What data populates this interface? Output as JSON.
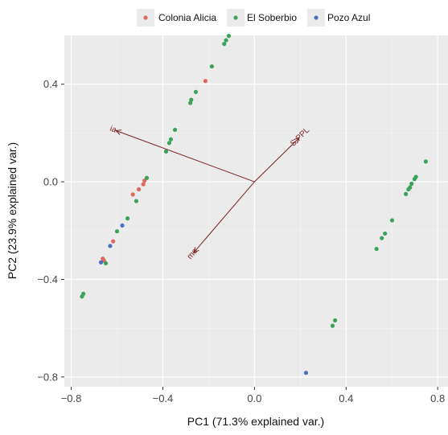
{
  "chart_data": {
    "type": "scatter",
    "xlabel": "PC1 (71.3% explained var.)",
    "ylabel": "PC2 (23.9% explained var.)",
    "xlim": [
      -0.83,
      0.845
    ],
    "ylim": [
      -0.84,
      0.6
    ],
    "x_ticks": [
      -0.8,
      -0.4,
      0.0,
      0.4,
      0.8
    ],
    "x_tick_labels": [
      "−0.8",
      "−0.4",
      "0.0",
      "0.4",
      "0.8"
    ],
    "y_ticks": [
      -0.8,
      -0.4,
      0.0,
      0.4
    ],
    "y_tick_labels": [
      "−0.8",
      "−0.4",
      "0.0",
      "0.4"
    ],
    "grid": true,
    "legend_position": "top",
    "series": [
      {
        "name": "Colonia Alicia",
        "color": "#e0685a",
        "points": [
          [
            -0.662,
            -0.315
          ],
          [
            -0.657,
            -0.323
          ],
          [
            -0.617,
            -0.244
          ],
          [
            -0.531,
            -0.052
          ],
          [
            -0.505,
            -0.031
          ],
          [
            -0.485,
            -0.01
          ],
          [
            -0.48,
            0.005
          ],
          [
            -0.214,
            0.413
          ]
        ]
      },
      {
        "name": "El Soberbio",
        "color": "#3aa357",
        "points": [
          [
            -0.753,
            -0.47
          ],
          [
            -0.747,
            -0.459
          ],
          [
            -0.649,
            -0.334
          ],
          [
            -0.6,
            -0.203
          ],
          [
            -0.554,
            -0.15
          ],
          [
            -0.516,
            -0.079
          ],
          [
            -0.47,
            0.016
          ],
          [
            -0.386,
            0.124
          ],
          [
            -0.372,
            0.159
          ],
          [
            -0.365,
            0.174
          ],
          [
            -0.347,
            0.213
          ],
          [
            -0.28,
            0.323
          ],
          [
            -0.276,
            0.336
          ],
          [
            -0.256,
            0.368
          ],
          [
            -0.186,
            0.473
          ],
          [
            -0.132,
            0.565
          ],
          [
            -0.124,
            0.58
          ],
          [
            -0.112,
            0.598
          ],
          [
            0.341,
            -0.59
          ],
          [
            0.352,
            -0.568
          ],
          [
            0.533,
            -0.275
          ],
          [
            0.556,
            -0.231
          ],
          [
            0.57,
            -0.212
          ],
          [
            0.601,
            -0.158
          ],
          [
            0.661,
            -0.05
          ],
          [
            0.672,
            -0.031
          ],
          [
            0.679,
            -0.023
          ],
          [
            0.686,
            -0.008
          ],
          [
            0.699,
            0.011
          ],
          [
            0.705,
            0.02
          ],
          [
            0.748,
            0.083
          ]
        ]
      },
      {
        "name": "Pozo Azul",
        "color": "#4a72c4",
        "points": [
          [
            -0.67,
            -0.33
          ],
          [
            -0.577,
            -0.179
          ],
          [
            -0.63,
            -0.263
          ],
          [
            0.225,
            -0.783
          ]
        ]
      }
    ],
    "vectors": [
      {
        "name": "ia",
        "x": -0.605,
        "y": 0.21
      },
      {
        "name": "S.PPL",
        "x": 0.195,
        "y": 0.18
      },
      {
        "name": "mo",
        "x": -0.265,
        "y": -0.29
      }
    ],
    "vector_color": "#7a2020"
  }
}
